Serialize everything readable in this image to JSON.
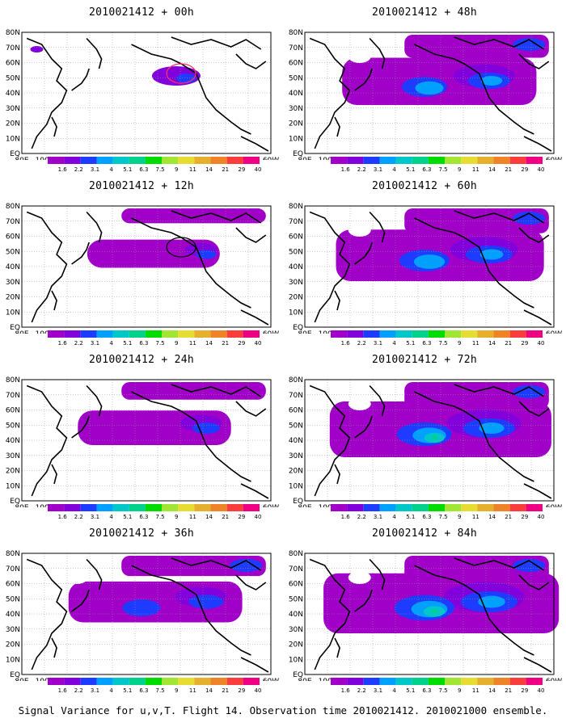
{
  "panels": [
    {
      "title": "2010021412 + 00h",
      "circle_color": "#ff3366",
      "intensity": 0.0
    },
    {
      "title": "2010021412 + 12h",
      "circle_color": "#000000",
      "intensity": 0.15
    },
    {
      "title": "2010021412 + 24h",
      "circle_color": "",
      "intensity": 0.3
    },
    {
      "title": "2010021412 + 36h",
      "circle_color": "",
      "intensity": 0.45
    },
    {
      "title": "2010021412 + 48h",
      "circle_color": "",
      "intensity": 0.6
    },
    {
      "title": "2010021412 + 60h",
      "circle_color": "",
      "intensity": 0.7
    },
    {
      "title": "2010021412 + 72h",
      "circle_color": "",
      "intensity": 0.8
    },
    {
      "title": "2010021412 + 84h",
      "circle_color": "",
      "intensity": 0.9
    }
  ],
  "map": {
    "lat_labels": [
      "80N",
      "70N",
      "60N",
      "50N",
      "40N",
      "30N",
      "20N",
      "10N",
      "EQ"
    ],
    "lon_labels": [
      "80E",
      "100E",
      "120E",
      "140E",
      "160E",
      "180",
      "160W",
      "140W",
      "120W",
      "100W",
      "80W",
      "60W"
    ]
  },
  "colorbar": {
    "labels": [
      "1.6",
      "2.2",
      "3.1",
      "4",
      "5.1",
      "6.3",
      "7.5",
      "9",
      "11",
      "14",
      "21",
      "29",
      "40"
    ],
    "colors": [
      "#a000c8",
      "#8200dc",
      "#1e3cff",
      "#00a0ff",
      "#00c8c8",
      "#00d28c",
      "#00dc00",
      "#a0e632",
      "#e6dc32",
      "#e6af2d",
      "#f08228",
      "#fa3c3c",
      "#f00082"
    ]
  },
  "caption": "Signal Variance for u,v,T. Flight 14. Observation time 2010021412. 2010021000 ensemble."
}
